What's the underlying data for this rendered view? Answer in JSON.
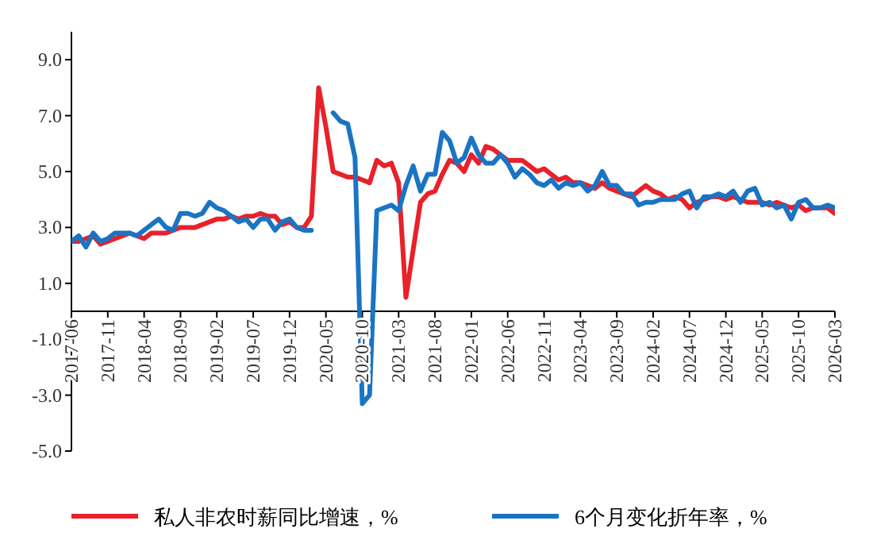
{
  "chart_data": {
    "type": "line",
    "categories": [
      "2017-06",
      null,
      null,
      null,
      null,
      "2017-11",
      null,
      null,
      null,
      null,
      "2018-04",
      null,
      null,
      null,
      null,
      "2018-09",
      null,
      null,
      null,
      null,
      "2019-02",
      null,
      null,
      null,
      null,
      "2019-07",
      null,
      null,
      null,
      null,
      "2019-12",
      null,
      null,
      null,
      null,
      "2020-05",
      null,
      null,
      null,
      null,
      "2020-10",
      null,
      null,
      null,
      null,
      "2021-03",
      null,
      null,
      null,
      null,
      "2021-08",
      null,
      null,
      null,
      null,
      "2022-01",
      null,
      null,
      null,
      null,
      "2022-06",
      null,
      null,
      null,
      null,
      "2022-11",
      null,
      null,
      null,
      null,
      "2023-04",
      null,
      null,
      null,
      null,
      "2023-09",
      null,
      null,
      null,
      null,
      "2024-02",
      null,
      null,
      null,
      null,
      "2024-07",
      null,
      null,
      null,
      null,
      "2024-12",
      null,
      null,
      null,
      null,
      "2025-05",
      null,
      null,
      null,
      null,
      "2025-10",
      null,
      null,
      null,
      null,
      "2026-03"
    ],
    "series": [
      {
        "name": "私人非农时薪同比增速，%",
        "color": "#e8212a",
        "values": [
          2.5,
          2.5,
          2.6,
          2.7,
          2.4,
          2.5,
          2.6,
          2.7,
          2.8,
          2.7,
          2.6,
          2.8,
          2.8,
          2.8,
          2.9,
          3.0,
          3.0,
          3.0,
          3.1,
          3.2,
          3.3,
          3.3,
          3.4,
          3.3,
          3.4,
          3.4,
          3.5,
          3.4,
          3.4,
          3.1,
          3.2,
          3.0,
          3.0,
          3.4,
          8.0,
          6.6,
          5.0,
          4.9,
          4.8,
          4.8,
          4.7,
          4.6,
          5.4,
          5.2,
          5.3,
          4.6,
          0.5,
          2.2,
          3.9,
          4.2,
          4.3,
          4.9,
          5.4,
          5.3,
          5.0,
          5.6,
          5.3,
          5.9,
          5.8,
          5.6,
          5.4,
          5.4,
          5.4,
          5.2,
          5.0,
          5.1,
          4.9,
          4.7,
          4.8,
          4.6,
          4.6,
          4.5,
          4.4,
          4.6,
          4.4,
          4.3,
          4.2,
          4.1,
          4.3,
          4.5,
          4.3,
          4.2,
          4.0,
          4.1,
          4.0,
          3.7,
          3.9,
          4.0,
          4.1,
          4.1,
          4.0,
          4.1,
          4.0,
          3.9,
          3.9,
          3.9,
          3.8,
          3.9,
          3.8,
          3.7,
          3.8,
          3.6,
          3.7,
          3.7,
          3.7,
          3.5
        ]
      },
      {
        "name": "6个月变化折年率，%",
        "color": "#1a74c4",
        "values": [
          2.5,
          2.7,
          2.3,
          2.8,
          2.5,
          2.6,
          2.8,
          2.8,
          2.8,
          2.7,
          2.9,
          3.1,
          3.3,
          3.0,
          2.9,
          3.5,
          3.5,
          3.4,
          3.5,
          3.9,
          3.7,
          3.6,
          3.4,
          3.2,
          3.3,
          3.0,
          3.3,
          3.3,
          2.9,
          3.2,
          3.3,
          3.0,
          2.9,
          2.9,
          null,
          null,
          7.1,
          6.8,
          6.7,
          5.5,
          -3.3,
          -3.0,
          3.6,
          3.7,
          3.8,
          3.6,
          4.5,
          5.2,
          4.3,
          4.9,
          4.9,
          6.4,
          6.1,
          5.3,
          5.5,
          6.2,
          5.6,
          5.3,
          5.3,
          5.6,
          5.3,
          4.8,
          5.1,
          4.9,
          4.6,
          4.5,
          4.7,
          4.4,
          4.6,
          4.5,
          4.6,
          4.3,
          4.5,
          5.0,
          4.5,
          4.5,
          4.2,
          4.2,
          3.8,
          3.9,
          3.9,
          4.0,
          4.0,
          4.0,
          4.2,
          4.3,
          3.7,
          4.1,
          4.1,
          4.2,
          4.1,
          4.3,
          3.9,
          4.3,
          4.4,
          3.8,
          3.9,
          3.7,
          3.8,
          3.3,
          3.9,
          4.0,
          3.7,
          3.7,
          3.8,
          3.7
        ]
      }
    ],
    "ylim": [
      -5,
      10
    ],
    "yticks": [
      {
        "value": -5,
        "label": "-5.0"
      },
      {
        "value": -3,
        "label": "-3.0"
      },
      {
        "value": -1,
        "label": "-1.0"
      },
      {
        "value": 1,
        "label": "1.0"
      },
      {
        "value": 3,
        "label": "3.0"
      },
      {
        "value": 5,
        "label": "5.0"
      },
      {
        "value": 7,
        "label": "7.0"
      },
      {
        "value": 9,
        "label": "9.0"
      }
    ],
    "grid": false,
    "legend": "bottom",
    "marker": "none",
    "line_style": "solid"
  }
}
